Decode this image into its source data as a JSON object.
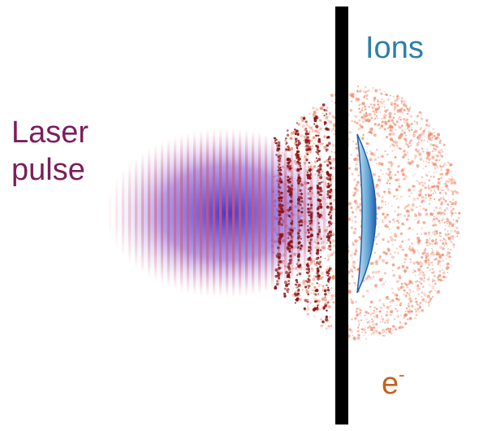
{
  "labels": {
    "laser_line1": "Laser",
    "laser_line2": "pulse",
    "ions": "Ions",
    "electron_base": "e",
    "electron_sup": "-"
  },
  "colors": {
    "laser_label": "#7a1f5c",
    "ions_label": "#2c7fa8",
    "electron_label": "#c6611c",
    "target_foil": "#000000",
    "laser_red": "#e0506a",
    "laser_blue": "#3a2ec8",
    "electron_dark": "#8a0f0f",
    "electron_light": "#f08060",
    "ion_dark": "#1f5fa8",
    "ion_light": "#cfe6f4"
  },
  "icons": {
    "target": "target-foil",
    "laser": "laser-pulse-fringes",
    "electrons": "electron-cloud",
    "ions": "ion-crescent"
  }
}
